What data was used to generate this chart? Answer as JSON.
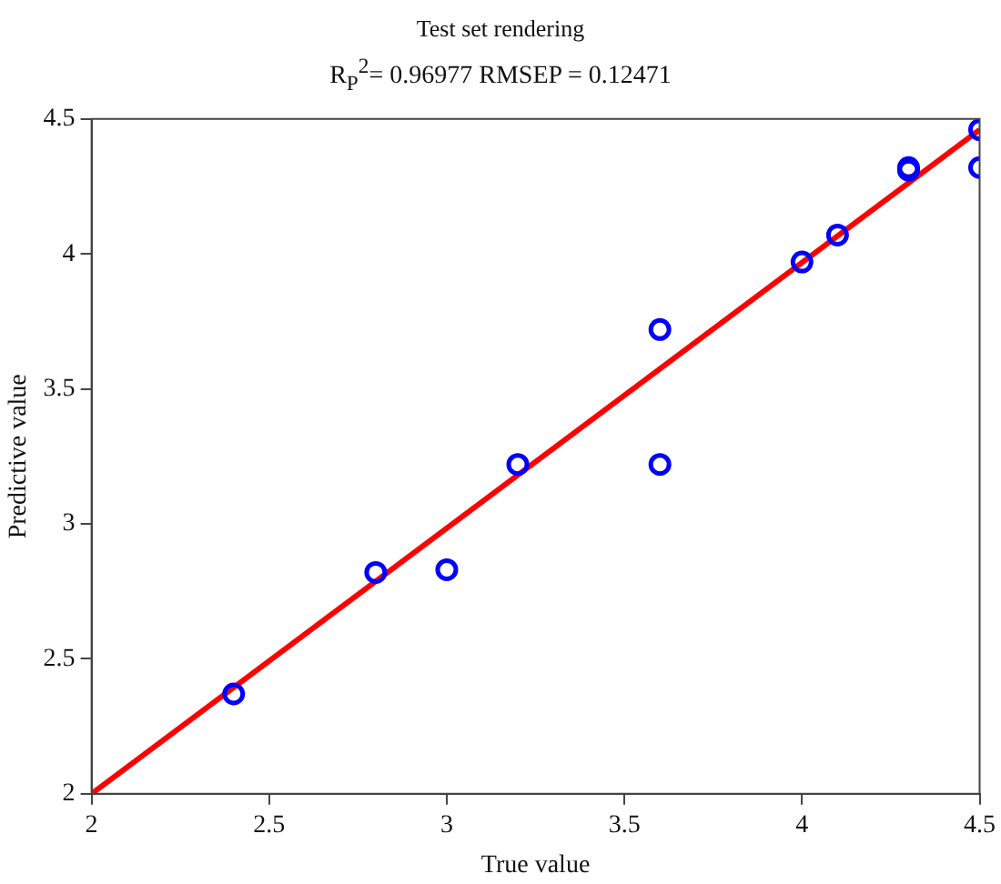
{
  "chart_data": {
    "type": "scatter",
    "title": "Test set rendering",
    "subtitle": "R$_{P}$$^{2}$= 0.96977 RMSEP = 0.12471",
    "xlabel": "True value",
    "ylabel": "Predictive value",
    "xlim": [
      2,
      4.5
    ],
    "xticks": [
      2,
      2.5,
      3,
      3.5,
      4,
      4.5
    ],
    "ylim": [
      2,
      4.5
    ],
    "yticks": [
      2,
      2.5,
      3,
      3.5,
      4,
      4.5
    ],
    "grid": false,
    "legend": false,
    "marker": "circle",
    "series": [
      {
        "type": "scatter",
        "color": "#0000ff",
        "x": [
          2.4,
          2.8,
          3.0,
          3.2,
          3.6,
          3.6,
          4.0,
          4.1,
          4.3,
          4.3,
          4.5,
          4.5
        ],
        "values": [
          2.37,
          2.82,
          2.83,
          3.22,
          3.72,
          3.22,
          3.97,
          4.07,
          4.32,
          4.31,
          4.46,
          4.32
        ]
      },
      {
        "type": "line",
        "color": "#ff0000",
        "marker": "none",
        "line_style": "solid",
        "x": [
          2,
          4.5
        ],
        "values": [
          2,
          4.46
        ]
      }
    ]
  }
}
